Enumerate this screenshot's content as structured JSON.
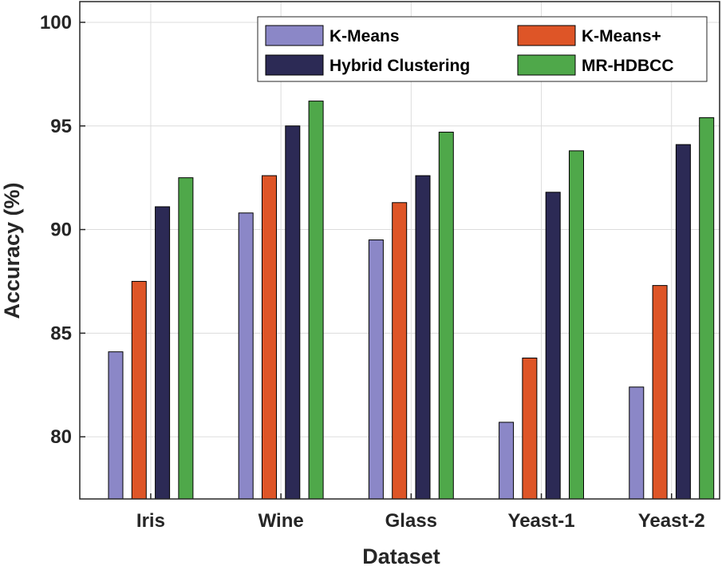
{
  "chart_data": {
    "type": "bar",
    "title": "",
    "xlabel": "Dataset",
    "ylabel": "Accuracy (%)",
    "ylim": [
      77,
      101
    ],
    "yticks": [
      80,
      85,
      90,
      95,
      100
    ],
    "grid": true,
    "legend_position": "top-right",
    "categories": [
      "Iris",
      "Wine",
      "Glass",
      "Yeast-1",
      "Yeast-2"
    ],
    "series": [
      {
        "name": "K-Means",
        "color": "#8b87c7",
        "values": [
          84.1,
          90.8,
          89.5,
          80.7,
          82.4
        ]
      },
      {
        "name": "K-Means+",
        "color": "#de5527",
        "values": [
          87.5,
          92.6,
          91.3,
          83.8,
          87.3
        ]
      },
      {
        "name": "Hybrid Clustering",
        "color": "#2c2a55",
        "values": [
          91.1,
          95.0,
          92.6,
          91.8,
          94.1
        ]
      },
      {
        "name": "MR-HDBCC",
        "color": "#4fa84a",
        "values": [
          92.5,
          96.2,
          94.7,
          93.8,
          95.4
        ]
      }
    ]
  }
}
